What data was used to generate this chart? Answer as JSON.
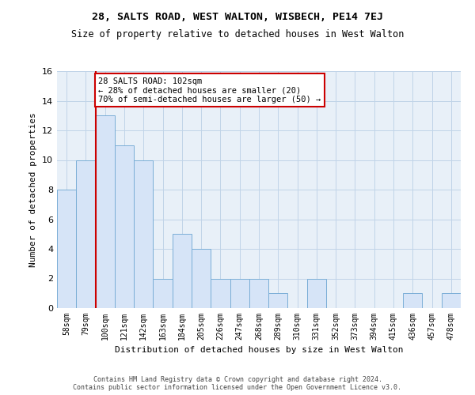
{
  "title": "28, SALTS ROAD, WEST WALTON, WISBECH, PE14 7EJ",
  "subtitle": "Size of property relative to detached houses in West Walton",
  "xlabel": "Distribution of detached houses by size in West Walton",
  "ylabel": "Number of detached properties",
  "footer_line1": "Contains HM Land Registry data © Crown copyright and database right 2024.",
  "footer_line2": "Contains public sector information licensed under the Open Government Licence v3.0.",
  "categories": [
    "58sqm",
    "79sqm",
    "100sqm",
    "121sqm",
    "142sqm",
    "163sqm",
    "184sqm",
    "205sqm",
    "226sqm",
    "247sqm",
    "268sqm",
    "289sqm",
    "310sqm",
    "331sqm",
    "352sqm",
    "373sqm",
    "394sqm",
    "415sqm",
    "436sqm",
    "457sqm",
    "478sqm"
  ],
  "values": [
    8,
    10,
    13,
    11,
    10,
    2,
    5,
    4,
    2,
    2,
    2,
    1,
    0,
    2,
    0,
    0,
    0,
    0,
    1,
    0,
    1
  ],
  "bar_color": "#d6e4f7",
  "bar_edge_color": "#7aaed6",
  "property_index": 2,
  "annotation_line1": "28 SALTS ROAD: 102sqm",
  "annotation_line2": "← 28% of detached houses are smaller (20)",
  "annotation_line3": "70% of semi-detached houses are larger (50) →",
  "vline_color": "#cc0000",
  "annotation_box_color": "#ffffff",
  "annotation_box_edge_color": "#cc0000",
  "ylim": [
    0,
    16
  ],
  "grid_color": "#c0d4e8",
  "background_color": "#e8f0f8"
}
